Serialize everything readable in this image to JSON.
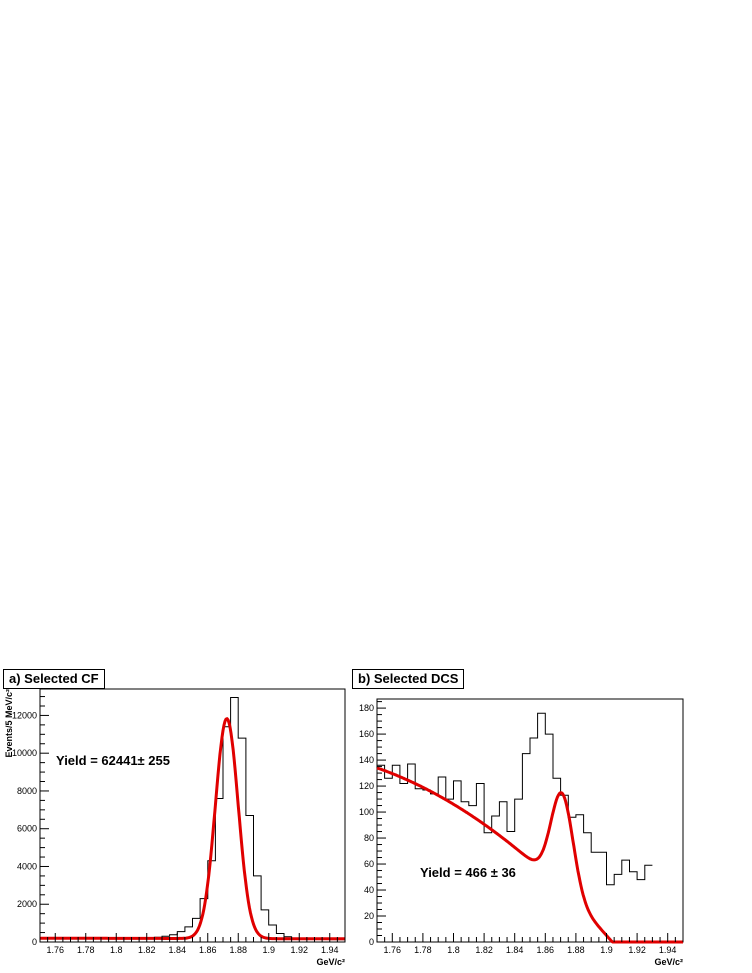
{
  "chart_data": [
    {
      "type": "histogram",
      "title": "a) Selected CF",
      "xlabel": "GeV/c²",
      "ylabel": "Events/5 MeV/c²",
      "xlim": [
        1.75,
        1.95
      ],
      "ylim": [
        0,
        13400
      ],
      "bin_width": 0.005,
      "x_ticks": [
        1.76,
        1.78,
        1.8,
        1.82,
        1.84,
        1.86,
        1.88,
        1.9,
        1.92,
        1.94
      ],
      "x_tick_labels": [
        "1.76",
        "1.78",
        "1.8",
        "1.82",
        "1.84",
        "1.86",
        "1.88",
        "1.9",
        "1.92",
        "1.94"
      ],
      "y_ticks": [
        0,
        2000,
        4000,
        6000,
        8000,
        10000,
        12000
      ],
      "y_tick_labels": [
        "0",
        "2000",
        "4000",
        "6000",
        "8000",
        "10000",
        "12000"
      ],
      "bin_edges_start": 1.75,
      "values": [
        240,
        230,
        220,
        215,
        210,
        205,
        200,
        200,
        195,
        200,
        200,
        200,
        205,
        210,
        220,
        250,
        300,
        380,
        550,
        800,
        1250,
        2300,
        4300,
        7600,
        11400,
        12950,
        10800,
        6700,
        3500,
        1700,
        900,
        450,
        280,
        200,
        170,
        150,
        140,
        130,
        125,
        120
      ],
      "fit": {
        "mean": 1.8725,
        "sigma": 0.0075,
        "peak": 11650,
        "background": 200,
        "background_slope": -150
      },
      "annotation": "Yield = 62441± 255",
      "grid": false
    },
    {
      "type": "histogram",
      "title": "b) Selected DCS",
      "xlabel": "GeV/c²",
      "ylabel": "",
      "xlim": [
        1.75,
        1.95
      ],
      "ylim": [
        0,
        187
      ],
      "bin_width": 0.005,
      "x_ticks": [
        1.76,
        1.78,
        1.8,
        1.82,
        1.84,
        1.86,
        1.88,
        1.9,
        1.92,
        1.94
      ],
      "x_tick_labels": [
        "1.76",
        "1.78",
        "1.8",
        "1.82",
        "1.84",
        "1.86",
        "1.88",
        "1.9",
        "1.92",
        "1.94"
      ],
      "y_ticks": [
        0,
        20,
        40,
        60,
        80,
        100,
        120,
        140,
        160,
        180
      ],
      "y_tick_labels": [
        "0",
        "20",
        "40",
        "60",
        "80",
        "100",
        "120",
        "140",
        "160",
        "180"
      ],
      "bin_edges_start": 1.75,
      "values": [
        136,
        126,
        136,
        122,
        137,
        118,
        117,
        114,
        127,
        110,
        124,
        108,
        105,
        122,
        84,
        97,
        108,
        85,
        110,
        145,
        157,
        176,
        160,
        126,
        113,
        96,
        98,
        84,
        69,
        69,
        44,
        52,
        63,
        54,
        48,
        59
      ],
      "fit": {
        "mean": 1.871,
        "sigma": 0.0072,
        "peak": 74,
        "bg_a": 134,
        "bg_b": -410,
        "bg_c": -3000
      },
      "annotation": "Yield = 466 ± 36",
      "grid": false
    }
  ],
  "colors": {
    "histogram": "#000000",
    "fit": "#e00000"
  }
}
